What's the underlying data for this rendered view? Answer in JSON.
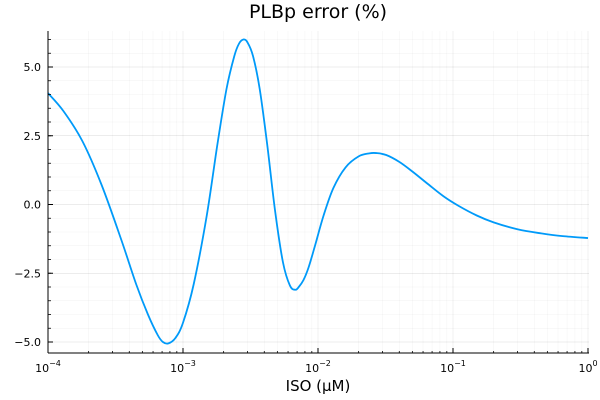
{
  "chart_data": {
    "type": "line",
    "title": "PLBp error (%)",
    "xlabel": "ISO (μM)",
    "ylabel": "",
    "xscale": "log10",
    "xlim": [
      0.0001,
      1
    ],
    "ylim": [
      -5.3,
      6.3
    ],
    "grid": true,
    "legend": "none",
    "x_ticks": [
      {
        "base": "10",
        "exp": "−4",
        "value": 0.0001
      },
      {
        "base": "10",
        "exp": "−3",
        "value": 0.001
      },
      {
        "base": "10",
        "exp": "−2",
        "value": 0.01
      },
      {
        "base": "10",
        "exp": "−1",
        "value": 0.1
      },
      {
        "base": "10",
        "exp": "0",
        "value": 1
      }
    ],
    "y_ticks": [
      {
        "label": "5.0",
        "value": 5.0
      },
      {
        "label": "2.5",
        "value": 2.5
      },
      {
        "label": "0.0",
        "value": 0.0
      },
      {
        "label": "−2.5",
        "value": -2.5
      },
      {
        "label": "−5.0",
        "value": -5.0
      }
    ],
    "series": [
      {
        "name": "PLBp error",
        "color": "#009af9",
        "x": [
          0.0001,
          0.00013,
          0.00018,
          0.00025,
          0.00035,
          0.00045,
          0.00055,
          0.00065,
          0.00071,
          0.00078,
          0.00088,
          0.001,
          0.0012,
          0.0015,
          0.0018,
          0.0021,
          0.0024,
          0.0026,
          0.0028,
          0.003,
          0.0033,
          0.0037,
          0.0042,
          0.0048,
          0.0055,
          0.0062,
          0.0068,
          0.0072,
          0.0078,
          0.0085,
          0.0095,
          0.011,
          0.013,
          0.016,
          0.02,
          0.024,
          0.027,
          0.032,
          0.04,
          0.05,
          0.065,
          0.085,
          0.11,
          0.15,
          0.2,
          0.3,
          0.45,
          0.65,
          1.0
        ],
        "y": [
          4.05,
          3.4,
          2.3,
          0.7,
          -1.3,
          -2.9,
          -4.0,
          -4.75,
          -5.0,
          -5.05,
          -4.85,
          -4.3,
          -2.9,
          -0.4,
          2.2,
          4.2,
          5.4,
          5.85,
          6.0,
          5.9,
          5.4,
          4.2,
          2.2,
          -0.2,
          -2.1,
          -2.95,
          -3.1,
          -3.0,
          -2.75,
          -2.3,
          -1.5,
          -0.4,
          0.6,
          1.35,
          1.75,
          1.86,
          1.87,
          1.8,
          1.55,
          1.2,
          0.75,
          0.3,
          -0.05,
          -0.4,
          -0.65,
          -0.9,
          -1.05,
          -1.15,
          -1.22
        ]
      }
    ]
  }
}
